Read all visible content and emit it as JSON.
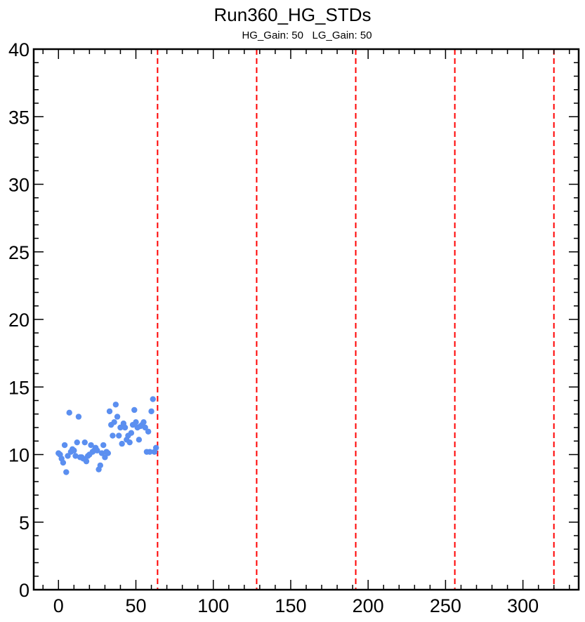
{
  "chart_data": {
    "type": "scatter",
    "title": "Run360_HG_STDs",
    "subtitle": "HG_Gain: 50   LG_Gain: 50",
    "xlabel": "",
    "ylabel": "",
    "xlim": [
      -16,
      336
    ],
    "ylim": [
      0,
      40
    ],
    "x_ticks": [
      0,
      50,
      100,
      150,
      200,
      250,
      300
    ],
    "y_ticks": [
      0,
      5,
      10,
      15,
      20,
      25,
      30,
      35,
      40
    ],
    "grid": false,
    "marker_color": "#5b8ff0",
    "line_color": "#ff0000",
    "vlines": [
      64,
      128,
      192,
      256,
      320
    ],
    "points": [
      {
        "x": 0,
        "y": 10.1
      },
      {
        "x": 1,
        "y": 10.0
      },
      {
        "x": 2,
        "y": 9.7
      },
      {
        "x": 3,
        "y": 9.4
      },
      {
        "x": 4,
        "y": 10.7
      },
      {
        "x": 5,
        "y": 8.7
      },
      {
        "x": 6,
        "y": 9.9
      },
      {
        "x": 7,
        "y": 13.1
      },
      {
        "x": 8,
        "y": 10.2
      },
      {
        "x": 9,
        "y": 10.4
      },
      {
        "x": 10,
        "y": 10.3
      },
      {
        "x": 11,
        "y": 9.9
      },
      {
        "x": 12,
        "y": 10.9
      },
      {
        "x": 13,
        "y": 12.8
      },
      {
        "x": 14,
        "y": 9.8
      },
      {
        "x": 15,
        "y": 9.8
      },
      {
        "x": 16,
        "y": 9.7
      },
      {
        "x": 17,
        "y": 10.9
      },
      {
        "x": 18,
        "y": 9.5
      },
      {
        "x": 19,
        "y": 9.9
      },
      {
        "x": 20,
        "y": 10.0
      },
      {
        "x": 21,
        "y": 10.7
      },
      {
        "x": 22,
        "y": 10.2
      },
      {
        "x": 23,
        "y": 10.3
      },
      {
        "x": 24,
        "y": 10.5
      },
      {
        "x": 25,
        "y": 10.3
      },
      {
        "x": 26,
        "y": 8.9
      },
      {
        "x": 27,
        "y": 9.2
      },
      {
        "x": 28,
        "y": 10.1
      },
      {
        "x": 29,
        "y": 10.7
      },
      {
        "x": 30,
        "y": 9.8
      },
      {
        "x": 31,
        "y": 10.2
      },
      {
        "x": 32,
        "y": 10.1
      },
      {
        "x": 33,
        "y": 13.2
      },
      {
        "x": 34,
        "y": 12.2
      },
      {
        "x": 35,
        "y": 11.4
      },
      {
        "x": 36,
        "y": 12.4
      },
      {
        "x": 37,
        "y": 13.7
      },
      {
        "x": 38,
        "y": 12.8
      },
      {
        "x": 39,
        "y": 11.4
      },
      {
        "x": 40,
        "y": 12.0
      },
      {
        "x": 41,
        "y": 10.8
      },
      {
        "x": 42,
        "y": 12.3
      },
      {
        "x": 43,
        "y": 12.0
      },
      {
        "x": 44,
        "y": 11.1
      },
      {
        "x": 45,
        "y": 11.4
      },
      {
        "x": 46,
        "y": 10.9
      },
      {
        "x": 47,
        "y": 11.6
      },
      {
        "x": 48,
        "y": 12.2
      },
      {
        "x": 49,
        "y": 13.3
      },
      {
        "x": 50,
        "y": 12.4
      },
      {
        "x": 51,
        "y": 12.0
      },
      {
        "x": 52,
        "y": 11.1
      },
      {
        "x": 53,
        "y": 12.1
      },
      {
        "x": 54,
        "y": 12.2
      },
      {
        "x": 55,
        "y": 12.4
      },
      {
        "x": 56,
        "y": 12.0
      },
      {
        "x": 57,
        "y": 10.2
      },
      {
        "x": 58,
        "y": 11.7
      },
      {
        "x": 59,
        "y": 10.2
      },
      {
        "x": 60,
        "y": 13.2
      },
      {
        "x": 61,
        "y": 14.1
      },
      {
        "x": 62,
        "y": 10.2
      },
      {
        "x": 63,
        "y": 10.5
      }
    ]
  }
}
